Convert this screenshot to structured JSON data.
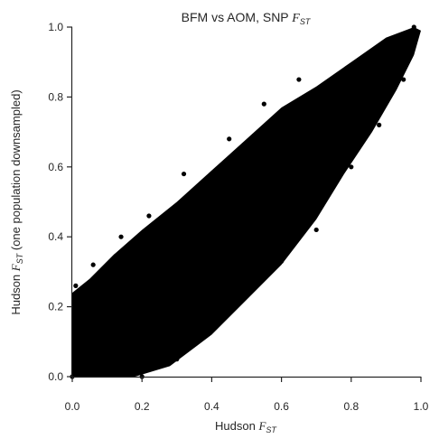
{
  "chart_data": {
    "type": "scatter",
    "title": {
      "prefix": "BFM vs AOM, SNP ",
      "var": "F",
      "sub": "ST"
    },
    "xlabel": {
      "prefix": "Hudson ",
      "var": "F",
      "sub": "ST",
      "suffix": ""
    },
    "ylabel": {
      "prefix": "Hudson ",
      "var": "F",
      "sub": "ST",
      "suffix": " (one population downsampled)"
    },
    "xlim": [
      0,
      1
    ],
    "ylim": [
      0,
      1
    ],
    "x_ticks": [
      0.0,
      0.2,
      0.4,
      0.6,
      0.8,
      1.0
    ],
    "y_ticks": [
      0.0,
      0.2,
      0.4,
      0.6,
      0.8,
      1.0
    ],
    "x_tick_labels": [
      "0.0",
      "0.2",
      "0.4",
      "0.6",
      "0.8",
      "1.0"
    ],
    "y_tick_labels": [
      "0.0",
      "0.2",
      "0.4",
      "0.6",
      "0.8",
      "1.0"
    ],
    "grid": false,
    "marker_color": "#000000",
    "points_note_values": "dense cloud approximating y ≈ x; representative sample of points",
    "points": [
      [
        0.0,
        0.0
      ],
      [
        0.02,
        0.01
      ],
      [
        0.05,
        0.03
      ],
      [
        0.08,
        0.06
      ],
      [
        0.1,
        0.1
      ],
      [
        0.12,
        0.09
      ],
      [
        0.15,
        0.12
      ],
      [
        0.18,
        0.16
      ],
      [
        0.2,
        0.19
      ],
      [
        0.22,
        0.25
      ],
      [
        0.25,
        0.22
      ],
      [
        0.28,
        0.3
      ],
      [
        0.3,
        0.28
      ],
      [
        0.32,
        0.35
      ],
      [
        0.35,
        0.33
      ],
      [
        0.38,
        0.4
      ],
      [
        0.4,
        0.38
      ],
      [
        0.42,
        0.45
      ],
      [
        0.45,
        0.43
      ],
      [
        0.48,
        0.5
      ],
      [
        0.5,
        0.48
      ],
      [
        0.52,
        0.55
      ],
      [
        0.55,
        0.53
      ],
      [
        0.58,
        0.6
      ],
      [
        0.6,
        0.58
      ],
      [
        0.62,
        0.66
      ],
      [
        0.65,
        0.63
      ],
      [
        0.68,
        0.7
      ],
      [
        0.7,
        0.69
      ],
      [
        0.72,
        0.74
      ],
      [
        0.75,
        0.76
      ],
      [
        0.78,
        0.8
      ],
      [
        0.8,
        0.82
      ],
      [
        0.82,
        0.86
      ],
      [
        0.85,
        0.88
      ],
      [
        0.88,
        0.91
      ],
      [
        0.9,
        0.94
      ],
      [
        0.93,
        0.97
      ],
      [
        0.95,
        0.98
      ],
      [
        0.98,
        1.0
      ],
      [
        0.01,
        0.26
      ],
      [
        0.06,
        0.32
      ],
      [
        0.14,
        0.4
      ],
      [
        0.22,
        0.46
      ],
      [
        0.32,
        0.58
      ],
      [
        0.45,
        0.68
      ],
      [
        0.55,
        0.78
      ],
      [
        0.65,
        0.85
      ],
      [
        0.2,
        0.0
      ],
      [
        0.3,
        0.05
      ],
      [
        0.4,
        0.15
      ],
      [
        0.5,
        0.25
      ],
      [
        0.6,
        0.33
      ],
      [
        0.7,
        0.42
      ],
      [
        0.8,
        0.6
      ],
      [
        0.88,
        0.72
      ],
      [
        0.82,
        0.68
      ],
      [
        0.95,
        0.85
      ],
      [
        0.18,
        0.37
      ],
      [
        0.14,
        0.3
      ]
    ]
  }
}
